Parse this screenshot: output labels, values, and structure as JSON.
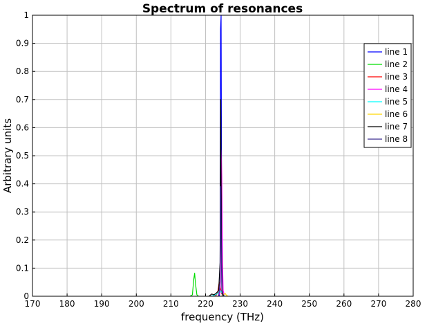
{
  "chart_data": {
    "type": "line",
    "title": "Spectrum of resonances",
    "xlabel": "frequency (THz)",
    "ylabel": "Arbitrary units",
    "xlim": [
      170,
      280
    ],
    "ylim": [
      0,
      1
    ],
    "xticks": [
      "170",
      "180",
      "190",
      "200",
      "210",
      "220",
      "230",
      "240",
      "250",
      "260",
      "270",
      "280"
    ],
    "yticks": [
      "0",
      "0.1",
      "0.2",
      "0.3",
      "0.4",
      "0.5",
      "0.6",
      "0.7",
      "0.8",
      "0.9",
      "1"
    ],
    "grid": true,
    "legend_position": "top-right",
    "series": [
      {
        "name": "line 1",
        "color": "#0000ff",
        "x": [
          223.6,
          224.0,
          224.2,
          224.35,
          224.5,
          224.65,
          224.8,
          225.2
        ],
        "y": [
          0,
          0.002,
          0.02,
          0.95,
          1.0,
          0.3,
          0.01,
          0
        ]
      },
      {
        "name": "line 2",
        "color": "#00dd00",
        "x": [
          215.5,
          216.2,
          216.6,
          216.85,
          217.1,
          217.5,
          218.0
        ],
        "y": [
          0,
          0.005,
          0.06,
          0.082,
          0.045,
          0.005,
          0
        ]
      },
      {
        "name": "line 3",
        "color": "#ff0000",
        "x": [
          222.5,
          223.2,
          223.6,
          223.9,
          224.1,
          224.3,
          224.6,
          225.2
        ],
        "y": [
          0,
          0.005,
          0.02,
          0.045,
          0.05,
          0.03,
          0.01,
          0
        ]
      },
      {
        "name": "line 4",
        "color": "#ff00ff",
        "x": [
          223.6,
          224.1,
          224.3,
          224.5,
          224.7,
          224.9,
          225.1,
          225.5
        ],
        "y": [
          0,
          0.01,
          0.05,
          0.52,
          0.43,
          0.12,
          0.02,
          0
        ]
      },
      {
        "name": "line 5",
        "color": "#00ffff",
        "x": [
          221.5,
          222.5,
          223.3,
          223.9,
          224.3,
          224.8,
          225.5
        ],
        "y": [
          0,
          0.003,
          0.008,
          0.015,
          0.02,
          0.01,
          0
        ]
      },
      {
        "name": "line 6",
        "color": "#ffd700",
        "x": [
          224.5,
          225.0,
          225.4,
          225.7,
          226.0,
          226.5
        ],
        "y": [
          0,
          0.003,
          0.007,
          0.01,
          0.004,
          0
        ]
      },
      {
        "name": "line 7",
        "color": "#000000",
        "x": [
          221.0,
          221.8,
          222.4,
          223.0,
          223.8,
          224.2,
          224.4,
          224.6,
          224.8,
          225.2
        ],
        "y": [
          0,
          0.008,
          0.005,
          0.01,
          0.02,
          0.12,
          0.7,
          0.18,
          0.02,
          0
        ]
      },
      {
        "name": "line 8",
        "color": "#3a2a8f",
        "x": [
          223.8,
          224.2,
          224.35,
          224.5,
          224.7,
          225.0
        ],
        "y": [
          0,
          0.05,
          0.39,
          0.2,
          0.02,
          0
        ]
      }
    ]
  }
}
